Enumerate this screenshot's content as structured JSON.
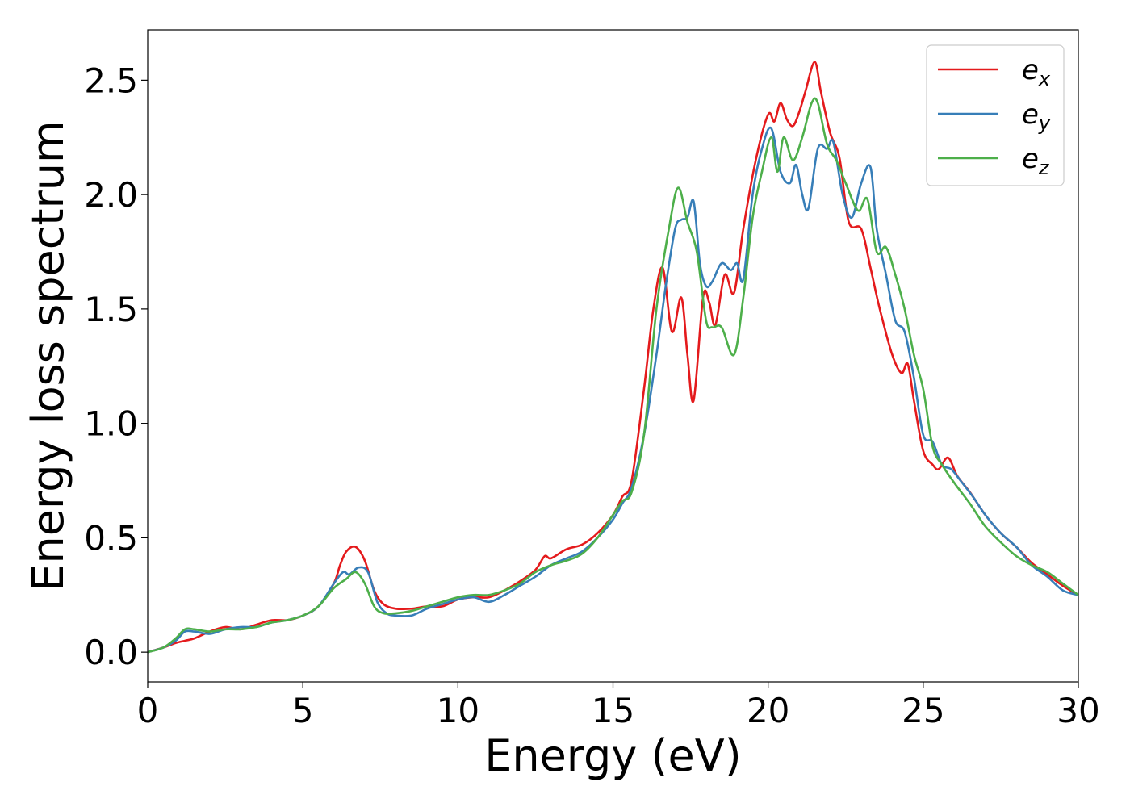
{
  "chart_data": {
    "type": "line",
    "xlabel": "Energy (eV)",
    "ylabel": "Energy loss spectrum",
    "xlim": [
      0,
      30
    ],
    "ylim": [
      -0.13,
      2.72
    ],
    "xticks": [
      0,
      5,
      10,
      15,
      20,
      25,
      30
    ],
    "xtick_labels": [
      "0",
      "5",
      "10",
      "15",
      "20",
      "25",
      "30"
    ],
    "yticks": [
      0.0,
      0.5,
      1.0,
      1.5,
      2.0,
      2.5
    ],
    "ytick_labels": [
      "0.0",
      "0.5",
      "1.0",
      "1.5",
      "2.0",
      "2.5"
    ],
    "grid": false,
    "legend_position": "top-right",
    "series": [
      {
        "name": "e_x",
        "label_main": "e",
        "label_sub": "x",
        "color": "#e41a1c",
        "x": [
          0,
          0.5,
          0.9,
          1.2,
          1.5,
          2.0,
          2.5,
          3.0,
          3.5,
          4.0,
          4.5,
          5.0,
          5.5,
          6.0,
          6.2,
          6.4,
          6.7,
          7.0,
          7.3,
          7.6,
          8.0,
          8.5,
          9.0,
          9.5,
          10.0,
          10.5,
          11.0,
          11.5,
          12.0,
          12.5,
          12.8,
          13.0,
          13.5,
          14.0,
          14.5,
          15.0,
          15.3,
          15.6,
          16.0,
          16.3,
          16.6,
          16.9,
          17.2,
          17.4,
          17.6,
          17.9,
          18.1,
          18.3,
          18.6,
          18.9,
          19.2,
          19.6,
          20.0,
          20.2,
          20.4,
          20.6,
          20.8,
          21.0,
          21.2,
          21.5,
          21.7,
          22.0,
          22.3,
          22.6,
          23.0,
          23.3,
          23.6,
          24.0,
          24.3,
          24.5,
          24.7,
          25.0,
          25.3,
          25.5,
          25.8,
          26.1,
          26.5,
          27.0,
          27.5,
          28.0,
          28.5,
          29.0,
          29.5,
          30.0
        ],
        "y": [
          0.0,
          0.02,
          0.04,
          0.05,
          0.06,
          0.09,
          0.11,
          0.1,
          0.12,
          0.14,
          0.14,
          0.16,
          0.2,
          0.3,
          0.38,
          0.44,
          0.46,
          0.4,
          0.27,
          0.21,
          0.19,
          0.19,
          0.2,
          0.2,
          0.23,
          0.24,
          0.24,
          0.27,
          0.31,
          0.36,
          0.42,
          0.41,
          0.45,
          0.47,
          0.52,
          0.6,
          0.68,
          0.75,
          1.15,
          1.5,
          1.68,
          1.4,
          1.55,
          1.3,
          1.1,
          1.55,
          1.53,
          1.43,
          1.65,
          1.57,
          1.85,
          2.15,
          2.35,
          2.32,
          2.4,
          2.33,
          2.3,
          2.36,
          2.45,
          2.58,
          2.45,
          2.27,
          2.16,
          1.88,
          1.85,
          1.68,
          1.5,
          1.3,
          1.22,
          1.26,
          1.1,
          0.88,
          0.82,
          0.8,
          0.85,
          0.77,
          0.7,
          0.6,
          0.52,
          0.46,
          0.39,
          0.34,
          0.29,
          0.25
        ]
      },
      {
        "name": "e_y",
        "label_main": "e",
        "label_sub": "y",
        "color": "#377eb8",
        "x": [
          0,
          0.5,
          0.9,
          1.2,
          1.5,
          2.0,
          2.5,
          3.0,
          3.5,
          4.0,
          4.5,
          5.0,
          5.5,
          6.0,
          6.3,
          6.5,
          6.8,
          7.1,
          7.4,
          7.7,
          8.0,
          8.5,
          9.0,
          9.5,
          10.0,
          10.5,
          11.0,
          11.5,
          12.0,
          12.5,
          13.0,
          13.5,
          14.0,
          14.5,
          15.0,
          15.3,
          15.6,
          16.0,
          16.4,
          16.7,
          17.0,
          17.2,
          17.4,
          17.6,
          17.8,
          18.0,
          18.2,
          18.5,
          18.8,
          19.0,
          19.2,
          19.5,
          19.8,
          20.1,
          20.4,
          20.7,
          20.9,
          21.1,
          21.3,
          21.6,
          21.9,
          22.1,
          22.4,
          22.7,
          23.0,
          23.3,
          23.5,
          23.8,
          24.1,
          24.4,
          24.7,
          25.0,
          25.3,
          25.6,
          25.9,
          26.2,
          26.6,
          27.0,
          27.5,
          28.0,
          28.5,
          29.0,
          29.5,
          30.0
        ],
        "y": [
          0.0,
          0.02,
          0.05,
          0.09,
          0.09,
          0.08,
          0.1,
          0.11,
          0.11,
          0.13,
          0.14,
          0.16,
          0.2,
          0.3,
          0.35,
          0.34,
          0.37,
          0.35,
          0.22,
          0.17,
          0.16,
          0.16,
          0.19,
          0.21,
          0.23,
          0.24,
          0.22,
          0.25,
          0.29,
          0.33,
          0.38,
          0.41,
          0.44,
          0.5,
          0.58,
          0.65,
          0.72,
          0.95,
          1.3,
          1.6,
          1.85,
          1.89,
          1.9,
          1.97,
          1.7,
          1.6,
          1.62,
          1.7,
          1.67,
          1.7,
          1.63,
          2.0,
          2.2,
          2.29,
          2.1,
          2.05,
          2.13,
          2.0,
          1.94,
          2.2,
          2.2,
          2.23,
          2.0,
          1.9,
          2.05,
          2.12,
          1.85,
          1.65,
          1.45,
          1.4,
          1.2,
          0.95,
          0.92,
          0.82,
          0.8,
          0.75,
          0.68,
          0.6,
          0.52,
          0.46,
          0.38,
          0.33,
          0.27,
          0.25
        ]
      },
      {
        "name": "e_z",
        "label_main": "e",
        "label_sub": "z",
        "color": "#4daf4a",
        "x": [
          0,
          0.5,
          0.9,
          1.2,
          1.5,
          2.0,
          2.5,
          3.0,
          3.5,
          4.0,
          4.5,
          5.0,
          5.5,
          6.0,
          6.4,
          6.7,
          7.0,
          7.3,
          7.6,
          8.0,
          8.5,
          9.0,
          9.5,
          10.0,
          10.5,
          11.0,
          11.5,
          12.0,
          12.5,
          13.0,
          13.5,
          14.0,
          14.5,
          15.0,
          15.3,
          15.6,
          16.0,
          16.4,
          16.8,
          17.1,
          17.4,
          17.7,
          18.0,
          18.2,
          18.5,
          18.9,
          19.2,
          19.5,
          19.8,
          20.1,
          20.3,
          20.5,
          20.8,
          21.1,
          21.4,
          21.6,
          21.9,
          22.2,
          22.5,
          22.9,
          23.2,
          23.5,
          23.8,
          24.1,
          24.4,
          24.7,
          25.0,
          25.3,
          25.6,
          26.0,
          26.5,
          27.0,
          27.5,
          28.0,
          28.5,
          29.0,
          29.5,
          30.0
        ],
        "y": [
          0.0,
          0.02,
          0.06,
          0.1,
          0.1,
          0.09,
          0.1,
          0.1,
          0.11,
          0.13,
          0.14,
          0.16,
          0.2,
          0.28,
          0.32,
          0.35,
          0.3,
          0.2,
          0.17,
          0.17,
          0.18,
          0.2,
          0.22,
          0.24,
          0.25,
          0.25,
          0.27,
          0.3,
          0.35,
          0.38,
          0.4,
          0.43,
          0.5,
          0.6,
          0.66,
          0.7,
          0.95,
          1.5,
          1.85,
          2.03,
          1.88,
          1.75,
          1.45,
          1.42,
          1.42,
          1.3,
          1.55,
          1.9,
          2.1,
          2.25,
          2.1,
          2.25,
          2.15,
          2.25,
          2.4,
          2.4,
          2.22,
          2.15,
          2.05,
          1.93,
          1.98,
          1.75,
          1.77,
          1.65,
          1.5,
          1.3,
          1.15,
          0.9,
          0.82,
          0.74,
          0.65,
          0.55,
          0.48,
          0.42,
          0.38,
          0.35,
          0.3,
          0.25
        ]
      }
    ]
  }
}
